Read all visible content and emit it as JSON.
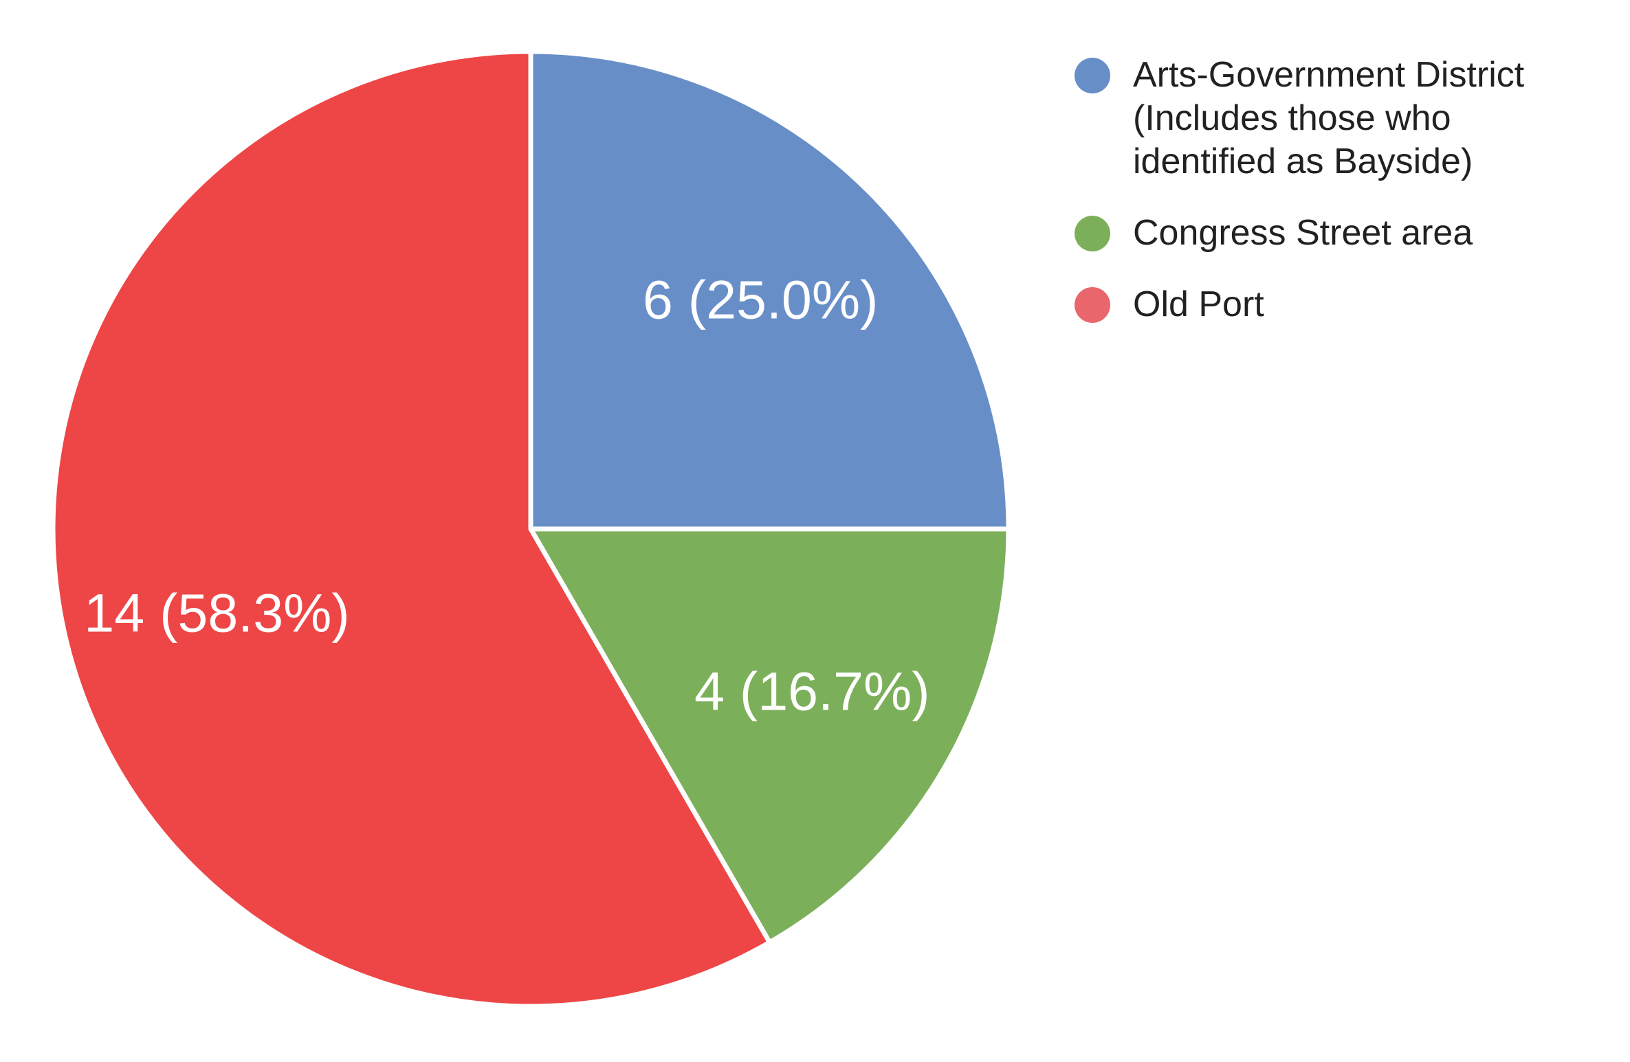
{
  "chart_data": {
    "type": "pie",
    "title": "",
    "categories": [
      "Arts-Government District (Includes those who identified as Bayside)",
      "Congress Street area",
      "Old Port"
    ],
    "values": [
      6,
      4,
      14
    ],
    "total": 24,
    "percentages": [
      "25.0",
      "16.7",
      "58.3"
    ],
    "slice_labels": [
      "6 (25.0%)",
      "4 (16.7%)",
      "14 (58.3%)"
    ],
    "slice_colors": [
      "#688ec8",
      "#7caf5a",
      "#ee4646"
    ],
    "slice_label_color": "#ffffff",
    "start_angle_deg": 0,
    "direction": "clockwise",
    "legend_position": "right",
    "background": "#ffffff",
    "separator_color": "#ffffff"
  },
  "legend": {
    "text_color": "#212121",
    "items": [
      {
        "color": "#688ec8",
        "lines": [
          "Arts-Government District",
          "(Includes those who",
          "identified as Bayside)"
        ]
      },
      {
        "color": "#7caf5a",
        "lines": [
          "Congress Street area"
        ]
      },
      {
        "color": "#e8666c",
        "lines": [
          "Old Port"
        ]
      }
    ]
  }
}
